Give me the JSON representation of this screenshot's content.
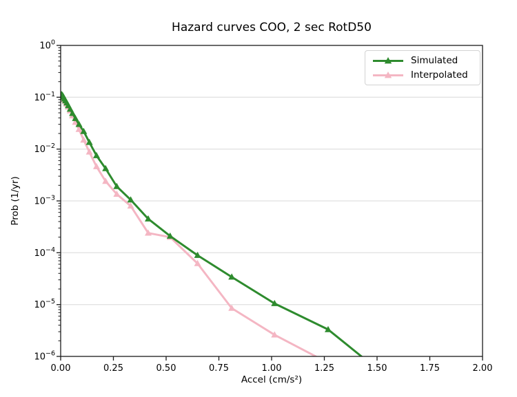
{
  "chart_data": {
    "type": "line",
    "title": "Hazard curves COO, 2 sec RotD50",
    "xlabel": "Accel (cm/s²)",
    "ylabel": "Prob (1/yr)",
    "background_color": "#ffffff",
    "spine_color": "#1a1a1a",
    "text_color": "#000000",
    "grid": {
      "horizontal": true,
      "vertical": false,
      "color": "#d8d8d8"
    },
    "x_axis": {
      "min": 0.0,
      "max": 2.0,
      "tick_values": [
        0.0,
        0.25,
        0.5,
        0.75,
        1.0,
        1.25,
        1.5,
        1.75,
        2.0
      ],
      "tick_labels": [
        "0.00",
        "0.25",
        "0.50",
        "0.75",
        "1.00",
        "1.25",
        "1.50",
        "1.75",
        "2.00"
      ]
    },
    "y_axis": {
      "scale": "log",
      "min": 1e-06,
      "max": 1.0,
      "tick_values": [
        1,
        0.1,
        0.01,
        0.001,
        0.0001,
        1e-05,
        1e-06
      ],
      "tick_exponents": [
        0,
        -1,
        -2,
        -3,
        -4,
        -5,
        -6
      ]
    },
    "legend": {
      "position": "upper right",
      "entries": [
        {
          "label": "Simulated",
          "color": "#2e8b2e",
          "marker": "triangle-up"
        },
        {
          "label": "Interpolated",
          "color": "#f4b6c3",
          "marker": "triangle-up"
        }
      ]
    },
    "series": [
      {
        "name": "Simulated",
        "color": "#2e8b2e",
        "marker": "triangle-up",
        "x": [
          0.004,
          0.0056,
          0.0071,
          0.009,
          0.011,
          0.014,
          0.018,
          0.023,
          0.029,
          0.036,
          0.045,
          0.056,
          0.07,
          0.087,
          0.109,
          0.136,
          0.17,
          0.213,
          0.266,
          0.332,
          0.415,
          0.519,
          0.649,
          0.811,
          1.014,
          1.268,
          1.585
        ],
        "y": [
          0.113,
          0.111,
          0.11,
          0.108,
          0.105,
          0.1,
          0.093,
          0.086,
          0.078,
          0.069,
          0.059,
          0.049,
          0.039,
          0.03,
          0.022,
          0.0135,
          0.0075,
          0.0042,
          0.0019,
          0.00105,
          0.00045,
          0.00021,
          8.9e-05,
          3.4e-05,
          1.05e-05,
          3.3e-06,
          3e-07
        ]
      },
      {
        "name": "Interpolated",
        "color": "#f4b6c3",
        "marker": "triangle-up",
        "x": [
          0.004,
          0.0056,
          0.0071,
          0.009,
          0.011,
          0.014,
          0.018,
          0.023,
          0.029,
          0.036,
          0.045,
          0.056,
          0.07,
          0.087,
          0.109,
          0.136,
          0.17,
          0.213,
          0.266,
          0.332,
          0.415,
          0.519,
          0.649,
          0.811,
          1.014,
          1.268
        ],
        "y": [
          0.105,
          0.104,
          0.103,
          0.102,
          0.099,
          0.095,
          0.089,
          0.082,
          0.074,
          0.065,
          0.055,
          0.044,
          0.033,
          0.024,
          0.015,
          0.0088,
          0.0046,
          0.0024,
          0.00135,
          0.0008,
          0.00024,
          0.0002,
          6.2e-05,
          8.5e-06,
          2.6e-06,
          7.5e-07
        ]
      }
    ]
  }
}
